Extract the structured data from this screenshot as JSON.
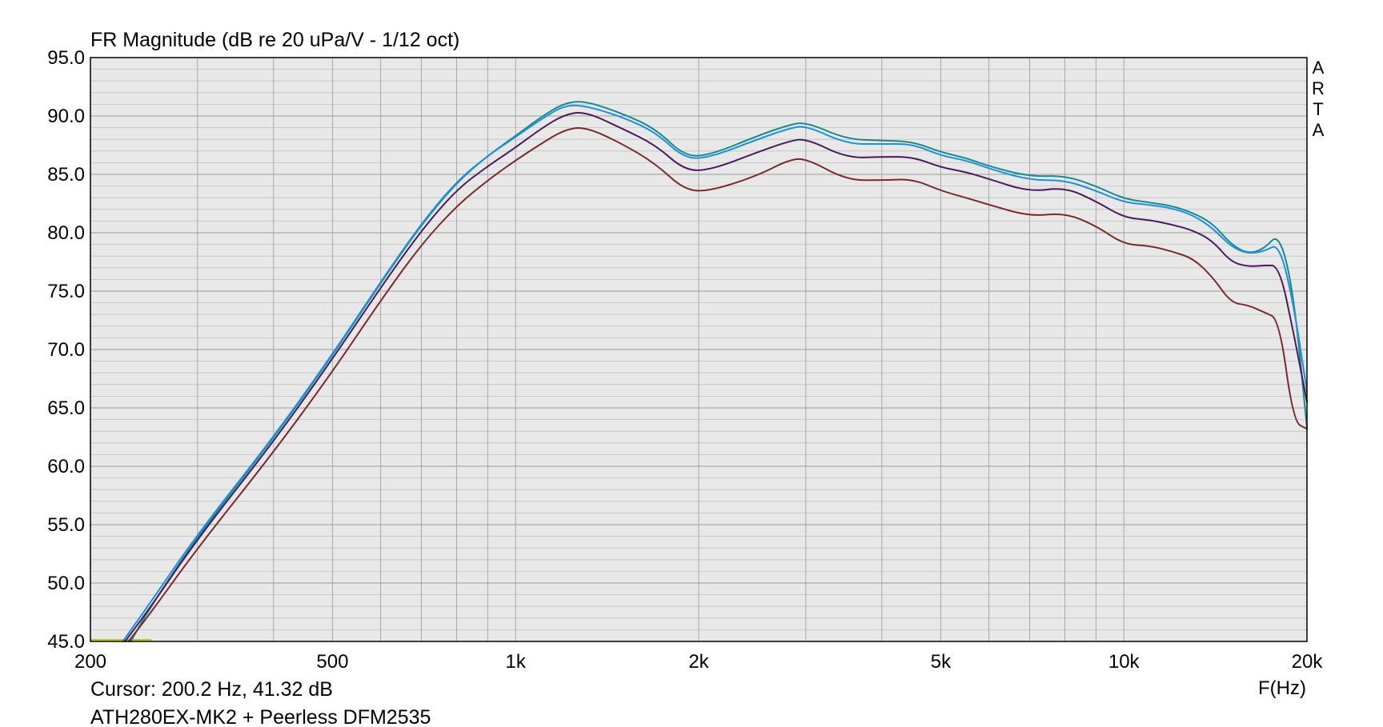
{
  "chart_data": {
    "type": "line",
    "title": "FR Magnitude (dB re 20 uPa/V - 1/12 oct)",
    "xlabel": "F(Hz)",
    "x_scale": "log",
    "xlim": [
      200,
      20000
    ],
    "ylim": [
      45,
      95
    ],
    "x_ticks": [
      {
        "value": 200,
        "label": "200"
      },
      {
        "value": 500,
        "label": "500"
      },
      {
        "value": 1000,
        "label": "1k"
      },
      {
        "value": 2000,
        "label": "2k"
      },
      {
        "value": 5000,
        "label": "5k"
      },
      {
        "value": 10000,
        "label": "10k"
      },
      {
        "value": 20000,
        "label": "20k"
      }
    ],
    "y_ticks": [
      {
        "value": 95,
        "label": "95.0"
      },
      {
        "value": 90,
        "label": "90.0"
      },
      {
        "value": 85,
        "label": "85.0"
      },
      {
        "value": 80,
        "label": "80.0"
      },
      {
        "value": 75,
        "label": "75.0"
      },
      {
        "value": 70,
        "label": "70.0"
      },
      {
        "value": 65,
        "label": "65.0"
      },
      {
        "value": 60,
        "label": "60.0"
      },
      {
        "value": 55,
        "label": "55.0"
      },
      {
        "value": 50,
        "label": "50.0"
      },
      {
        "value": 45,
        "label": "45.0"
      }
    ],
    "grid": true,
    "watermark": "ARTA",
    "cursor_text": "Cursor: 200.2 Hz, 41.32 dB",
    "footer_text": "ATH280EX-MK2 + Peerless DFM2535",
    "series": [
      {
        "color": "#1a8a8a",
        "points": [
          [
            233,
            45
          ],
          [
            250,
            47.8
          ],
          [
            300,
            54
          ],
          [
            400,
            62.4
          ],
          [
            500,
            69.5
          ],
          [
            600,
            75.7
          ],
          [
            700,
            80.7
          ],
          [
            800,
            84.3
          ],
          [
            900,
            86.6
          ],
          [
            1000,
            88.3
          ],
          [
            1100,
            89.9
          ],
          [
            1200,
            91.1
          ],
          [
            1300,
            91.3
          ],
          [
            1500,
            90.2
          ],
          [
            1700,
            88.9
          ],
          [
            1900,
            86.5
          ],
          [
            2100,
            86.7
          ],
          [
            2500,
            88.3
          ],
          [
            2800,
            89.2
          ],
          [
            3000,
            89.5
          ],
          [
            3500,
            88
          ],
          [
            4000,
            87.9
          ],
          [
            4500,
            87.8
          ],
          [
            5000,
            86.9
          ],
          [
            5500,
            86.4
          ],
          [
            6000,
            85.7
          ],
          [
            7000,
            84.8
          ],
          [
            8000,
            84.9
          ],
          [
            9000,
            84
          ],
          [
            10000,
            82.9
          ],
          [
            11000,
            82.6
          ],
          [
            12000,
            82.3
          ],
          [
            13000,
            81.7
          ],
          [
            14000,
            80.8
          ],
          [
            15000,
            79
          ],
          [
            16000,
            78.2
          ],
          [
            17000,
            78.6
          ],
          [
            18000,
            80
          ],
          [
            19000,
            75
          ],
          [
            20000,
            63.3
          ]
        ]
      },
      {
        "color": "#1e90e0",
        "points": [
          [
            226,
            45
          ],
          [
            250,
            48.2
          ],
          [
            300,
            54.2
          ],
          [
            400,
            62.5
          ],
          [
            500,
            69.6
          ],
          [
            600,
            75.8
          ],
          [
            700,
            80.8
          ],
          [
            800,
            84.4
          ],
          [
            900,
            86.6
          ],
          [
            1000,
            88.2
          ],
          [
            1100,
            89.7
          ],
          [
            1200,
            90.9
          ],
          [
            1300,
            90.9
          ],
          [
            1500,
            89.9
          ],
          [
            1700,
            88.6
          ],
          [
            1900,
            86.3
          ],
          [
            2100,
            86.5
          ],
          [
            2500,
            88
          ],
          [
            2800,
            88.9
          ],
          [
            3000,
            89.2
          ],
          [
            3500,
            87.6
          ],
          [
            4000,
            87.6
          ],
          [
            4500,
            87.6
          ],
          [
            5000,
            86.6
          ],
          [
            5500,
            86.2
          ],
          [
            6000,
            85.5
          ],
          [
            7000,
            84.5
          ],
          [
            8000,
            84.5
          ],
          [
            9000,
            83.6
          ],
          [
            10000,
            82.6
          ],
          [
            11000,
            82.4
          ],
          [
            12000,
            82.1
          ],
          [
            13000,
            81.5
          ],
          [
            14000,
            80.4
          ],
          [
            15000,
            78.8
          ],
          [
            16000,
            78.2
          ],
          [
            17000,
            78.4
          ],
          [
            18000,
            79.1
          ],
          [
            19000,
            74
          ],
          [
            20000,
            66.4
          ]
        ]
      },
      {
        "color": "#4a1a5a",
        "points": [
          [
            228,
            45
          ],
          [
            250,
            47.8
          ],
          [
            300,
            53.8
          ],
          [
            400,
            62.1
          ],
          [
            500,
            69.2
          ],
          [
            600,
            75.3
          ],
          [
            700,
            80.2
          ],
          [
            800,
            83.7
          ],
          [
            900,
            85.7
          ],
          [
            1000,
            87.3
          ],
          [
            1100,
            88.9
          ],
          [
            1200,
            90.1
          ],
          [
            1300,
            90.4
          ],
          [
            1500,
            88.9
          ],
          [
            1700,
            87.5
          ],
          [
            1900,
            85.3
          ],
          [
            2100,
            85.4
          ],
          [
            2500,
            86.9
          ],
          [
            2800,
            87.8
          ],
          [
            3000,
            88.1
          ],
          [
            3500,
            86.4
          ],
          [
            4000,
            86.5
          ],
          [
            4500,
            86.5
          ],
          [
            5000,
            85.6
          ],
          [
            5500,
            85.2
          ],
          [
            6000,
            84.6
          ],
          [
            7000,
            83.5
          ],
          [
            8000,
            83.9
          ],
          [
            9000,
            82.7
          ],
          [
            10000,
            81.3
          ],
          [
            11000,
            81.1
          ],
          [
            12000,
            80.7
          ],
          [
            13000,
            80.2
          ],
          [
            14000,
            79.3
          ],
          [
            15000,
            77.5
          ],
          [
            16000,
            77.1
          ],
          [
            17000,
            77.2
          ],
          [
            18000,
            77.2
          ],
          [
            19000,
            71.5
          ],
          [
            20000,
            65.5
          ]
        ]
      },
      {
        "color": "#7a2a2a",
        "points": [
          [
            231,
            45
          ],
          [
            250,
            47.3
          ],
          [
            300,
            53
          ],
          [
            400,
            61.2
          ],
          [
            500,
            68.1
          ],
          [
            600,
            74.2
          ],
          [
            700,
            79
          ],
          [
            800,
            82.3
          ],
          [
            900,
            84.5
          ],
          [
            1000,
            86.2
          ],
          [
            1100,
            87.6
          ],
          [
            1200,
            88.8
          ],
          [
            1300,
            89.1
          ],
          [
            1500,
            87.6
          ],
          [
            1700,
            85.9
          ],
          [
            1900,
            83.6
          ],
          [
            2100,
            83.6
          ],
          [
            2500,
            84.9
          ],
          [
            2800,
            86.2
          ],
          [
            3000,
            86.4
          ],
          [
            3500,
            84.5
          ],
          [
            4000,
            84.5
          ],
          [
            4500,
            84.6
          ],
          [
            5000,
            83.6
          ],
          [
            5500,
            83
          ],
          [
            6000,
            82.4
          ],
          [
            7000,
            81.4
          ],
          [
            8000,
            81.7
          ],
          [
            9000,
            80.6
          ],
          [
            10000,
            79
          ],
          [
            11000,
            78.9
          ],
          [
            12000,
            78.4
          ],
          [
            13000,
            77.8
          ],
          [
            14000,
            76.2
          ],
          [
            15000,
            74
          ],
          [
            16000,
            73.8
          ],
          [
            17000,
            73.2
          ],
          [
            18000,
            72.6
          ],
          [
            19000,
            63.8
          ],
          [
            20000,
            63.2
          ]
        ]
      }
    ]
  }
}
